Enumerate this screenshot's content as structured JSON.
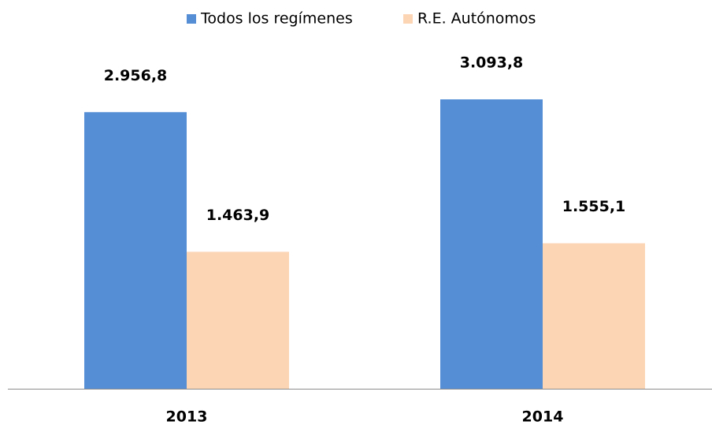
{
  "chart_data": {
    "type": "bar",
    "categories": [
      "2013",
      "2014"
    ],
    "series": [
      {
        "name": "Todos los regímenes",
        "color": "#558ed5",
        "values": [
          2956.8,
          3093.8
        ],
        "value_labels": [
          "2.956,8",
          "3.093,8"
        ]
      },
      {
        "name": "R.E. Autónomos",
        "color": "#fcd5b5",
        "values": [
          1463.9,
          1555.1
        ],
        "value_labels": [
          "1.463,9",
          "1.555,1"
        ]
      }
    ]
  }
}
